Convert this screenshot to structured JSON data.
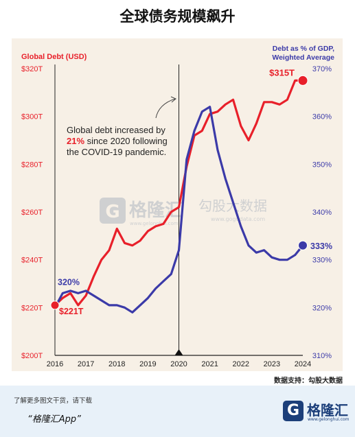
{
  "page": {
    "title": "全球债务规模飙升",
    "source": "数据支持：勾股大数据",
    "footer_note": "了解更多图文干货，请下载",
    "footer_app": "“格隆汇App”",
    "footer_logo_text": "格隆汇",
    "footer_logo_site": "www.gelonghui.com"
  },
  "watermarks": {
    "left_brand": "格隆汇",
    "left_site": "www.gelonghui.com",
    "right_brand": "勾股大数据",
    "right_site": "www.gogudata.com"
  },
  "chart_data": {
    "type": "line",
    "left_axis_title": "Global Debt (USD)",
    "right_axis_title_line1": "Debt as % of GDP,",
    "right_axis_title_line2": "Weighted Average",
    "x_ticks": [
      "2016",
      "2017",
      "2018",
      "2019",
      "2020",
      "2021",
      "2022",
      "2023",
      "2024"
    ],
    "x_range": [
      2016,
      2024
    ],
    "left_ticks": [
      "$200T",
      "$220T",
      "$240T",
      "$260T",
      "$280T",
      "$300T",
      "$320T"
    ],
    "left_range": [
      200,
      320
    ],
    "right_ticks": [
      "310%",
      "320%",
      "330%",
      "340%",
      "350%",
      "360%",
      "370%"
    ],
    "right_range": [
      310,
      370
    ],
    "grid": false,
    "colors": {
      "debt": "#e8202a",
      "ratio": "#3b3aa8",
      "text": "#333333",
      "left_title": "#e8202a",
      "right_title": "#3b3aa8"
    },
    "series": [
      {
        "key": "debt",
        "axis": "left",
        "x": [
          2016.0,
          2016.25,
          2016.5,
          2016.75,
          2017.0,
          2017.25,
          2017.5,
          2017.75,
          2018.0,
          2018.25,
          2018.5,
          2018.75,
          2019.0,
          2019.25,
          2019.5,
          2019.75,
          2020.0,
          2020.25,
          2020.5,
          2020.75,
          2021.0,
          2021.25,
          2021.5,
          2021.75,
          2022.0,
          2022.25,
          2022.5,
          2022.75,
          2023.0,
          2023.25,
          2023.5,
          2023.75,
          2024.0
        ],
        "values": [
          221,
          224,
          226,
          221,
          225,
          233,
          240,
          244,
          253,
          247,
          246,
          248,
          252,
          254,
          255,
          260,
          262,
          279,
          292,
          294,
          301,
          302,
          305,
          307,
          296,
          290,
          297,
          306,
          306,
          305,
          307,
          315,
          315
        ]
      },
      {
        "key": "ratio",
        "axis": "right",
        "x": [
          2016.0,
          2016.25,
          2016.5,
          2016.75,
          2017.0,
          2017.25,
          2017.5,
          2017.75,
          2018.0,
          2018.25,
          2018.5,
          2018.75,
          2019.0,
          2019.25,
          2019.5,
          2019.75,
          2020.0,
          2020.25,
          2020.5,
          2020.75,
          2021.0,
          2021.25,
          2021.5,
          2021.75,
          2022.0,
          2022.25,
          2022.5,
          2022.75,
          2023.0,
          2023.25,
          2023.5,
          2023.75,
          2024.0
        ],
        "values": [
          320,
          323,
          323.5,
          323,
          323.5,
          322.5,
          321.5,
          320.5,
          320.5,
          320,
          319,
          320.5,
          322,
          324,
          325.5,
          327,
          332,
          351,
          357,
          361,
          362,
          353,
          347,
          342,
          337,
          333,
          331.5,
          332,
          330.5,
          330,
          330,
          331,
          333
        ]
      }
    ],
    "start_labels": {
      "debt": "$221T",
      "ratio": "320%"
    },
    "end_labels": {
      "debt": "$315T",
      "ratio": "333%"
    },
    "annotation": {
      "line1": "Global debt increased by",
      "highlight": "21%",
      "line2_rest": " since 2020 following",
      "line3": "the COVID-19 pandemic."
    },
    "vertical_markers": [
      2016,
      2020
    ]
  }
}
